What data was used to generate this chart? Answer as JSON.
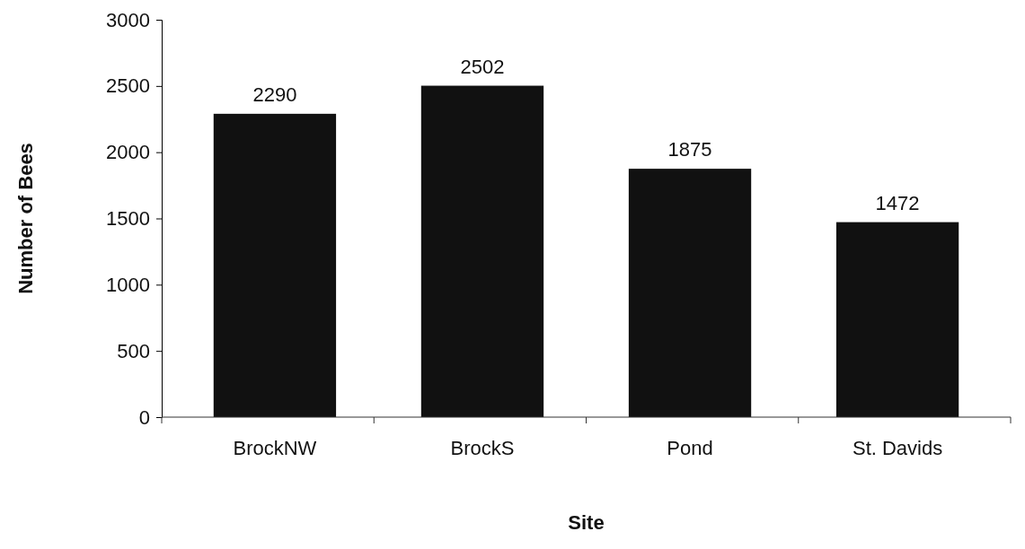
{
  "chart_data": {
    "type": "bar",
    "xlabel": "Site",
    "ylabel": "Number of Bees",
    "categories": [
      "BrockNW",
      "BrockS",
      "Pond",
      "St. Davids"
    ],
    "values": [
      2290,
      2502,
      1875,
      1472
    ],
    "color": "#111111",
    "ylim": [
      0,
      3000
    ],
    "yticks": [
      0,
      500,
      1000,
      1500,
      2000,
      2500,
      3000
    ],
    "data_labels": true
  }
}
